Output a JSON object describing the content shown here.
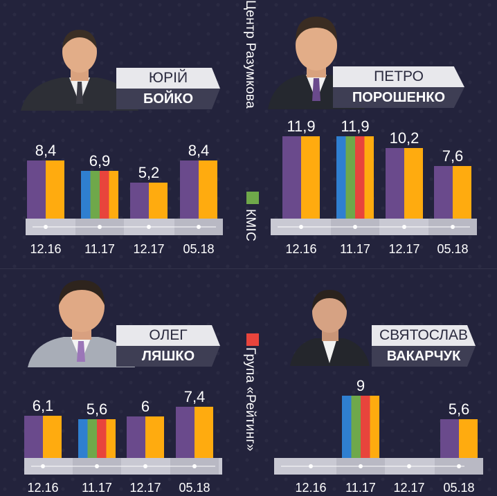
{
  "sources": {
    "top": "Центр Разумкова",
    "mid": "КМІС",
    "bottom": "Група «Рейтинг»"
  },
  "colors": {
    "purple": "#6a4a8c",
    "orange": "#ffab0f",
    "blue": "#2f7fd0",
    "green": "#6fa84a",
    "red": "#e8443c",
    "kmis": "#6fa84a",
    "rating": "#e8443c"
  },
  "candidates": [
    {
      "first": "ЮРІЙ",
      "last": "БОЙКО"
    },
    {
      "first": "ПЕТРО",
      "last": "ПОРОШЕНКО"
    },
    {
      "first": "ОЛЕГ",
      "last": "ЛЯШКО"
    },
    {
      "first": "СВЯТОСЛАВ",
      "last": "ВАКАРЧУК"
    }
  ],
  "chart_data": [
    {
      "type": "bar",
      "categories": [
        "12.16",
        "11.17",
        "12.17",
        "05.18"
      ],
      "values": [
        8.4,
        6.9,
        5.2,
        8.4
      ],
      "labels": [
        "8,4",
        "6,9",
        "5,2",
        "8,4"
      ],
      "sources": [
        "top",
        "mid",
        "top",
        "top"
      ]
    },
    {
      "type": "bar",
      "categories": [
        "12.16",
        "11.17",
        "12.17",
        "05.18"
      ],
      "values": [
        11.9,
        11.9,
        10.2,
        7.6
      ],
      "labels": [
        "11,9",
        "11,9",
        "10,2",
        "7,6"
      ],
      "sources": [
        "top",
        "mid",
        "top",
        "top"
      ]
    },
    {
      "type": "bar",
      "categories": [
        "12.16",
        "11.17",
        "12.17",
        "05.18"
      ],
      "values": [
        6.1,
        5.6,
        6,
        7.4
      ],
      "labels": [
        "6,1",
        "5,6",
        "6",
        "7,4"
      ],
      "sources": [
        "bottom",
        "mid",
        "bottom",
        "bottom"
      ]
    },
    {
      "type": "bar",
      "categories": [
        "12.16",
        "11.17",
        "12.17",
        "05.18"
      ],
      "values": [
        null,
        9,
        null,
        5.6
      ],
      "labels": [
        "",
        "9",
        "",
        "5,6"
      ],
      "sources": [
        "bottom",
        "mid",
        "bottom",
        "bottom"
      ]
    }
  ]
}
